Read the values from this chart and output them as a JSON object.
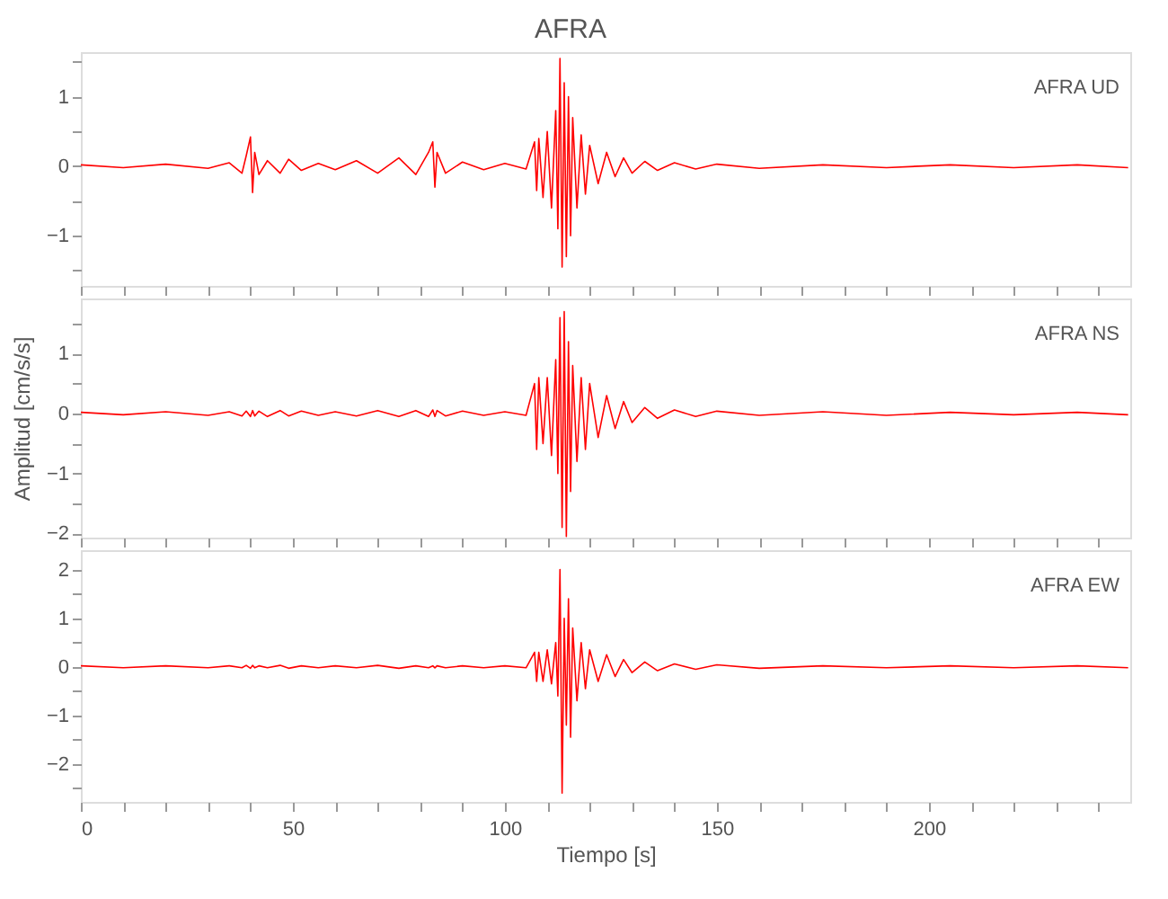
{
  "chart_data": [
    {
      "type": "line",
      "title": "AFRA",
      "annotations": [
        "AFRA   UD"
      ],
      "tick_labels": "y",
      "grid": false,
      "xlim": [
        0,
        247.5
      ],
      "ylim": [
        -1.72,
        1.64
      ],
      "xticks": [
        0,
        {
          "value": 10,
          "label": null
        },
        {
          "value": 20,
          "label": null
        },
        {
          "value": 30,
          "label": null
        },
        {
          "value": 40,
          "label": null
        },
        50,
        {
          "value": 60,
          "label": null
        },
        {
          "value": 70,
          "label": null
        },
        {
          "value": 80,
          "label": null
        },
        {
          "value": 90,
          "label": null
        },
        100,
        {
          "value": 110,
          "label": null
        },
        {
          "value": 120,
          "label": null
        },
        {
          "value": 130,
          "label": null
        },
        {
          "value": 140,
          "label": null
        },
        150,
        {
          "value": 160,
          "label": null
        },
        {
          "value": 170,
          "label": null
        },
        {
          "value": 180,
          "label": null
        },
        {
          "value": 190,
          "label": null
        },
        200,
        {
          "value": 210,
          "label": null
        },
        {
          "value": 220,
          "label": null
        },
        {
          "value": 230,
          "label": null
        },
        {
          "value": 240,
          "label": null
        }
      ],
      "yticks": [
        {
          "value": -1.5,
          "label": null
        },
        {
          "value": -1,
          "label": "−1"
        },
        {
          "value": -0.5,
          "label": null
        },
        0,
        {
          "value": 0.5,
          "label": null
        },
        1,
        {
          "value": 1.5,
          "label": null
        }
      ],
      "x": [
        0,
        10,
        20,
        30,
        35,
        38,
        39,
        40,
        40.5,
        41,
        42,
        44,
        47,
        49,
        52,
        56,
        60,
        65,
        70,
        75,
        79,
        82,
        83,
        83.5,
        84,
        86,
        90,
        95,
        100,
        105,
        107,
        107.5,
        108,
        109,
        110,
        111,
        112,
        112.5,
        113,
        113.5,
        114,
        114.5,
        115,
        115.5,
        116,
        117,
        118,
        119,
        120,
        122,
        124,
        126,
        128,
        130,
        133,
        136,
        140,
        145,
        150,
        160,
        175,
        190,
        205,
        220,
        235,
        247
      ],
      "series": [
        {
          "color": "#ff0000",
          "values": [
            0.02,
            -0.02,
            0.03,
            -0.03,
            0.05,
            -0.1,
            0.15,
            0.42,
            -0.38,
            0.2,
            -0.12,
            0.08,
            -0.1,
            0.1,
            -0.06,
            0.04,
            -0.05,
            0.08,
            -0.1,
            0.12,
            -0.12,
            0.2,
            0.35,
            -0.3,
            0.2,
            -0.1,
            0.06,
            -0.05,
            0.04,
            -0.04,
            0.35,
            -0.35,
            0.4,
            -0.45,
            0.5,
            -0.6,
            0.8,
            -0.9,
            1.55,
            -1.45,
            1.2,
            -1.3,
            1.0,
            -1.0,
            0.7,
            -0.6,
            0.45,
            -0.4,
            0.3,
            -0.25,
            0.2,
            -0.15,
            0.12,
            -0.1,
            0.07,
            -0.06,
            0.05,
            -0.04,
            0.03,
            -0.03,
            0.02,
            -0.02,
            0.02,
            -0.02,
            0.02,
            -0.02
          ]
        }
      ]
    },
    {
      "type": "line",
      "ylabel": "Amplitud [cm/s/s]",
      "annotations": [
        "AFRA   NS"
      ],
      "tick_labels": "y",
      "grid": false,
      "xlim": [
        0,
        247.5
      ],
      "ylim": [
        -2.07,
        1.92
      ],
      "xticks": [
        0,
        {
          "value": 10,
          "label": null
        },
        {
          "value": 20,
          "label": null
        },
        {
          "value": 30,
          "label": null
        },
        {
          "value": 40,
          "label": null
        },
        50,
        {
          "value": 60,
          "label": null
        },
        {
          "value": 70,
          "label": null
        },
        {
          "value": 80,
          "label": null
        },
        {
          "value": 90,
          "label": null
        },
        100,
        {
          "value": 110,
          "label": null
        },
        {
          "value": 120,
          "label": null
        },
        {
          "value": 130,
          "label": null
        },
        {
          "value": 140,
          "label": null
        },
        150,
        {
          "value": 160,
          "label": null
        },
        {
          "value": 170,
          "label": null
        },
        {
          "value": 180,
          "label": null
        },
        {
          "value": 190,
          "label": null
        },
        200,
        {
          "value": 210,
          "label": null
        },
        {
          "value": 220,
          "label": null
        },
        {
          "value": 230,
          "label": null
        },
        {
          "value": 240,
          "label": null
        }
      ],
      "yticks": [
        {
          "value": -2,
          "label": "−2"
        },
        {
          "value": -1.5,
          "label": null
        },
        {
          "value": -1,
          "label": "−1"
        },
        {
          "value": -0.5,
          "label": null
        },
        0,
        {
          "value": 0.5,
          "label": null
        },
        1,
        {
          "value": 1.5,
          "label": null
        }
      ],
      "x": [
        0,
        10,
        20,
        30,
        35,
        38,
        39,
        40,
        40.5,
        41,
        42,
        44,
        47,
        49,
        52,
        56,
        60,
        65,
        70,
        75,
        79,
        82,
        83,
        83.5,
        84,
        86,
        90,
        95,
        100,
        105,
        107,
        107.5,
        108,
        109,
        110,
        111,
        112,
        112.5,
        113,
        113.5,
        114,
        114.5,
        115,
        115.5,
        116,
        117,
        118,
        119,
        120,
        122,
        124,
        126,
        128,
        130,
        133,
        136,
        140,
        145,
        150,
        160,
        175,
        190,
        205,
        220,
        235,
        247
      ],
      "series": [
        {
          "color": "#ff0000",
          "values": [
            0.02,
            -0.02,
            0.03,
            -0.03,
            0.03,
            -0.04,
            0.04,
            -0.05,
            0.05,
            -0.04,
            0.04,
            -0.05,
            0.05,
            -0.04,
            0.04,
            -0.03,
            0.03,
            -0.04,
            0.05,
            -0.05,
            0.05,
            -0.05,
            0.06,
            -0.05,
            0.05,
            -0.04,
            0.04,
            -0.03,
            0.03,
            -0.03,
            0.5,
            -0.6,
            0.6,
            -0.5,
            0.6,
            -0.7,
            0.9,
            -1.0,
            1.6,
            -1.9,
            1.7,
            -2.05,
            1.2,
            -1.3,
            0.8,
            -0.8,
            0.6,
            -0.6,
            0.5,
            -0.4,
            0.3,
            -0.25,
            0.2,
            -0.15,
            0.1,
            -0.08,
            0.06,
            -0.05,
            0.04,
            -0.03,
            0.03,
            -0.03,
            0.02,
            -0.02,
            0.02,
            -0.02
          ]
        }
      ]
    },
    {
      "type": "line",
      "xlabel": "Tiempo [s]",
      "annotations": [
        "AFRA   EW"
      ],
      "grid": false,
      "xlim": [
        0,
        247.5
      ],
      "ylim": [
        -2.78,
        2.4
      ],
      "xticks": [
        0,
        {
          "value": 10,
          "label": null
        },
        {
          "value": 20,
          "label": null
        },
        {
          "value": 30,
          "label": null
        },
        {
          "value": 40,
          "label": null
        },
        50,
        {
          "value": 60,
          "label": null
        },
        {
          "value": 70,
          "label": null
        },
        {
          "value": 80,
          "label": null
        },
        {
          "value": 90,
          "label": null
        },
        100,
        {
          "value": 110,
          "label": null
        },
        {
          "value": 120,
          "label": null
        },
        {
          "value": 130,
          "label": null
        },
        {
          "value": 140,
          "label": null
        },
        150,
        {
          "value": 160,
          "label": null
        },
        {
          "value": 170,
          "label": null
        },
        {
          "value": 180,
          "label": null
        },
        {
          "value": 190,
          "label": null
        },
        200,
        {
          "value": 210,
          "label": null
        },
        {
          "value": 220,
          "label": null
        },
        {
          "value": 230,
          "label": null
        },
        {
          "value": 240,
          "label": null
        }
      ],
      "yticks": [
        {
          "value": -2.5,
          "label": null
        },
        {
          "value": -2,
          "label": "−2"
        },
        {
          "value": -1.5,
          "label": null
        },
        {
          "value": -1,
          "label": "−1"
        },
        {
          "value": -0.5,
          "label": null
        },
        0,
        {
          "value": 0.5,
          "label": null
        },
        1,
        {
          "value": 1.5,
          "label": null
        },
        2
      ],
      "x": [
        0,
        10,
        20,
        30,
        35,
        38,
        39,
        40,
        40.5,
        41,
        42,
        44,
        47,
        49,
        52,
        56,
        60,
        65,
        70,
        75,
        79,
        82,
        83,
        83.5,
        84,
        86,
        90,
        95,
        100,
        105,
        107,
        107.5,
        108,
        109,
        110,
        111,
        112,
        112.5,
        113,
        113.5,
        114,
        114.5,
        115,
        115.5,
        116,
        117,
        118,
        119,
        120,
        122,
        124,
        126,
        128,
        130,
        133,
        136,
        140,
        145,
        150,
        160,
        175,
        190,
        205,
        220,
        235,
        247
      ],
      "series": [
        {
          "color": "#ff0000",
          "values": [
            0.02,
            -0.02,
            0.02,
            -0.02,
            0.02,
            -0.02,
            0.03,
            -0.03,
            0.03,
            -0.02,
            0.02,
            -0.02,
            0.03,
            -0.03,
            0.02,
            -0.02,
            0.02,
            -0.02,
            0.03,
            -0.03,
            0.02,
            -0.02,
            0.02,
            -0.02,
            0.02,
            -0.02,
            0.02,
            -0.02,
            0.02,
            -0.02,
            0.3,
            -0.3,
            0.3,
            -0.3,
            0.35,
            -0.35,
            0.5,
            -0.6,
            2.0,
            -2.6,
            1.0,
            -1.2,
            1.4,
            -1.45,
            0.8,
            -0.7,
            0.5,
            -0.45,
            0.35,
            -0.3,
            0.25,
            -0.2,
            0.15,
            -0.12,
            0.1,
            -0.08,
            0.06,
            -0.05,
            0.04,
            -0.03,
            0.02,
            -0.02,
            0.02,
            -0.02,
            0.02,
            -0.02
          ]
        }
      ]
    }
  ]
}
